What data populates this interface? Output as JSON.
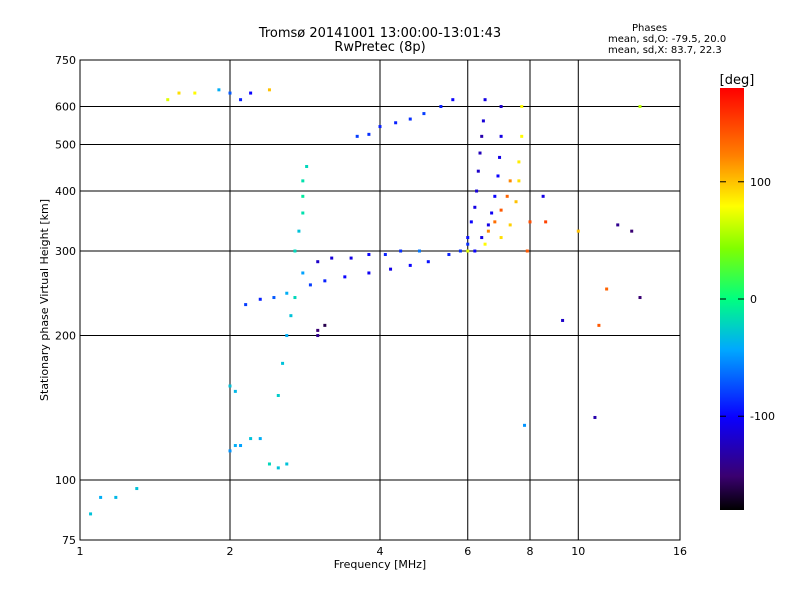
{
  "header": {
    "title": "Tromsø 20141001 13:00:00-13:01:43",
    "subtitle": "RwPretec (8p)"
  },
  "phase_box": {
    "heading": "Phases",
    "line_o": "mean, sd,O: -79.5, 20.0",
    "line_x": "mean, sd,X: 83.7, 22.3"
  },
  "colorbar": {
    "unit_label": "[deg]",
    "tick_labels": [
      "100",
      "0",
      "-100"
    ],
    "tick_values": [
      100,
      0,
      -100
    ],
    "range": [
      -180,
      180
    ]
  },
  "chart_data": {
    "type": "scatter",
    "title": "Tromsø 20141001 13:00:00-13:01:43",
    "subtitle": "RwPretec (8p)",
    "xlabel": "Frequency [MHz]",
    "ylabel": "Stationary phase Virtual Height [km]",
    "xscale": "log",
    "yscale": "log",
    "xlim": [
      1,
      16
    ],
    "ylim": [
      75,
      750
    ],
    "x_ticks": [
      1,
      2,
      4,
      6,
      8,
      10,
      16
    ],
    "x_tick_labels": [
      "1",
      "2",
      "4",
      "6",
      "8",
      "10",
      "16"
    ],
    "y_ticks": [
      75,
      100,
      200,
      300,
      400,
      500,
      600,
      750
    ],
    "y_tick_labels": [
      "75",
      "100",
      "200",
      "300",
      "400",
      "500",
      "600",
      "750"
    ],
    "grid": true,
    "color_by": "phase [deg]",
    "series": [
      {
        "x": [
          1.05,
          1.1,
          1.18,
          1.3,
          1.5,
          1.58
        ],
        "y": [
          85,
          92,
          92,
          96,
          620,
          640
        ],
        "phase": [
          -30,
          -40,
          -35,
          -30,
          70,
          90
        ]
      },
      {
        "x": [
          1.7,
          1.9,
          2.0,
          2.1,
          2.2,
          2.4
        ],
        "y": [
          640,
          650,
          640,
          620,
          640,
          650
        ],
        "phase": [
          80,
          -40,
          -70,
          -90,
          -100,
          100
        ]
      },
      {
        "x": [
          2.0,
          2.05,
          2.1,
          2.2,
          2.3,
          2.4,
          2.5,
          2.6
        ],
        "y": [
          115,
          118,
          118,
          122,
          122,
          108,
          106,
          108
        ],
        "phase": [
          -50,
          -40,
          -45,
          -30,
          -40,
          -20,
          -30,
          -30
        ]
      },
      {
        "x": [
          2.0,
          2.05,
          2.15,
          2.3,
          2.45,
          2.6
        ],
        "y": [
          157,
          153,
          232,
          238,
          240,
          245
        ],
        "phase": [
          -30,
          -35,
          -80,
          -90,
          -70,
          -40
        ]
      },
      {
        "x": [
          2.5,
          2.55,
          2.6,
          2.65,
          2.7,
          2.8
        ],
        "y": [
          150,
          175,
          200,
          220,
          240,
          270
        ],
        "phase": [
          -25,
          -30,
          -40,
          -30,
          -20,
          -45
        ]
      },
      {
        "x": [
          2.7,
          2.75,
          2.8,
          2.8,
          2.8,
          2.85
        ],
        "y": [
          300,
          330,
          360,
          390,
          420,
          450
        ],
        "phase": [
          -20,
          -30,
          -15,
          -10,
          -15,
          -20
        ]
      },
      {
        "x": [
          2.9,
          3.1,
          3.4,
          3.8,
          4.2,
          4.6,
          5.0,
          5.5,
          6.0
        ],
        "y": [
          255,
          260,
          265,
          270,
          275,
          280,
          285,
          295,
          310
        ],
        "phase": [
          -80,
          -90,
          -100,
          -105,
          -110,
          -100,
          -95,
          -90,
          -85
        ]
      },
      {
        "x": [
          3.0,
          3.2,
          3.5,
          3.8,
          4.1,
          4.4,
          4.8
        ],
        "y": [
          285,
          290,
          290,
          295,
          295,
          300,
          300
        ],
        "phase": [
          -120,
          -115,
          -110,
          -100,
          -90,
          -85,
          -60
        ]
      },
      {
        "x": [
          3.0,
          3.1,
          3.0
        ],
        "y": [
          205,
          210,
          200
        ],
        "phase": [
          -150,
          -160,
          -140
        ]
      },
      {
        "x": [
          3.6,
          3.8,
          4.0,
          4.3,
          4.6,
          4.9,
          5.3,
          5.6
        ],
        "y": [
          520,
          525,
          545,
          555,
          565,
          580,
          600,
          620
        ],
        "phase": [
          -80,
          -85,
          -90,
          -90,
          -85,
          -80,
          -90,
          -100
        ]
      },
      {
        "x": [
          5.8,
          6.0,
          6.1,
          6.2,
          6.25,
          6.3,
          6.35,
          6.4,
          6.45,
          6.5
        ],
        "y": [
          300,
          320,
          345,
          370,
          400,
          440,
          480,
          520,
          560,
          620
        ],
        "phase": [
          -85,
          -95,
          -100,
          -110,
          -115,
          -120,
          -125,
          -130,
          -115,
          -110
        ]
      },
      {
        "x": [
          6.2,
          6.4,
          6.6,
          6.7,
          6.8,
          6.9,
          6.95,
          7.0,
          7.0
        ],
        "y": [
          300,
          320,
          340,
          360,
          390,
          430,
          470,
          520,
          600
        ],
        "phase": [
          -100,
          -110,
          -110,
          -105,
          -100,
          -100,
          -110,
          -110,
          -120
        ]
      },
      {
        "x": [
          6.0,
          6.5,
          7.0,
          7.3,
          7.5,
          7.6,
          7.6,
          7.7,
          7.7
        ],
        "y": [
          300,
          310,
          320,
          340,
          380,
          420,
          460,
          520,
          600
        ],
        "phase": [
          70,
          80,
          90,
          95,
          100,
          90,
          85,
          80,
          80
        ]
      },
      {
        "x": [
          6.6,
          6.8,
          7.0,
          7.2,
          7.3
        ],
        "y": [
          330,
          345,
          365,
          390,
          420
        ],
        "phase": [
          120,
          130,
          140,
          135,
          120
        ]
      },
      {
        "x": [
          7.8,
          8.5,
          9.3,
          10.8,
          12.0,
          12.8,
          13.3
        ],
        "y": [
          130,
          390,
          215,
          135,
          340,
          330,
          240
        ],
        "phase": [
          -50,
          -110,
          -120,
          -130,
          -140,
          -150,
          -150
        ]
      },
      {
        "x": [
          7.9,
          8.0,
          8.6,
          10.0,
          11.0,
          11.4,
          13.3
        ],
        "y": [
          300,
          345,
          345,
          330,
          210,
          250,
          600
        ],
        "phase": [
          140,
          145,
          150,
          100,
          140,
          135,
          60
        ]
      }
    ]
  },
  "plot_box": {
    "frame_color": "#000000",
    "background": "#ffffff"
  }
}
